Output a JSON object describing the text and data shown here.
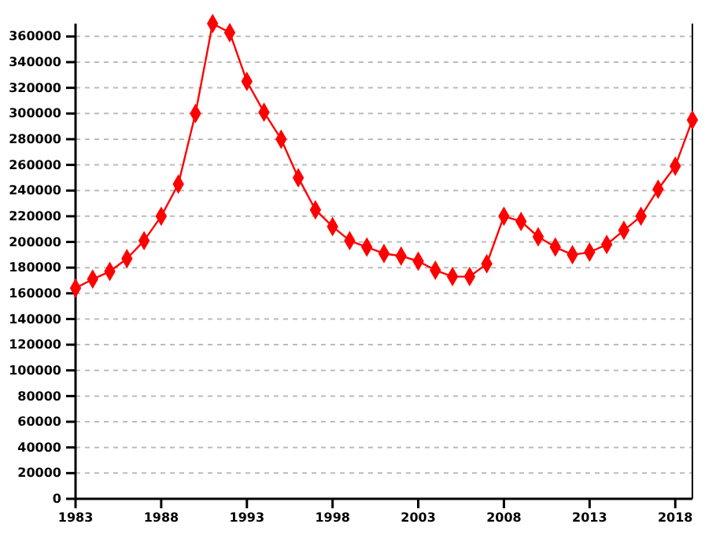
{
  "chart_data": {
    "type": "line",
    "x": [
      1983,
      1984,
      1985,
      1986,
      1987,
      1988,
      1989,
      1990,
      1991,
      1992,
      1993,
      1994,
      1995,
      1996,
      1997,
      1998,
      1999,
      2000,
      2001,
      2002,
      2003,
      2004,
      2005,
      2006,
      2007,
      2008,
      2009,
      2010,
      2011,
      2012,
      2013,
      2014,
      2015,
      2016,
      2017,
      2018,
      2019
    ],
    "series": [
      {
        "color": "#ff0000",
        "values": [
          164000,
          171000,
          177000,
          187000,
          201000,
          220000,
          245000,
          300000,
          370000,
          363000,
          325000,
          301000,
          280000,
          250000,
          225000,
          212000,
          201000,
          196000,
          191000,
          189000,
          185000,
          178000,
          173000,
          173000,
          183000,
          220000,
          216000,
          204000,
          196000,
          190000,
          192000,
          198000,
          209000,
          220000,
          241000,
          259000,
          295000
        ]
      }
    ],
    "xlim": [
      1983,
      2019
    ],
    "xticks": [
      1983,
      1988,
      1993,
      1998,
      2003,
      2008,
      2013,
      2018
    ],
    "ylim": [
      0,
      370000
    ],
    "yticks": [
      0,
      20000,
      40000,
      60000,
      80000,
      100000,
      120000,
      140000,
      160000,
      180000,
      200000,
      220000,
      240000,
      260000,
      280000,
      300000,
      320000,
      340000,
      360000
    ],
    "grid": "y",
    "marker": "diamond",
    "line_style": "solid"
  }
}
